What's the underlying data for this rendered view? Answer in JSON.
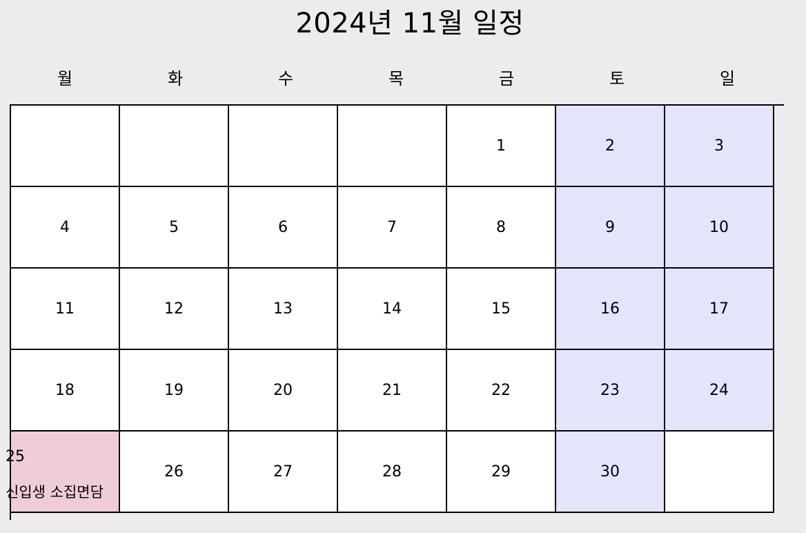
{
  "calendar": {
    "title": "2024년 11월 일정",
    "weekdays": [
      "월",
      "화",
      "수",
      "목",
      "금",
      "토",
      "일"
    ],
    "weeks": [
      [
        "",
        "",
        "",
        "",
        "1",
        "2",
        "3"
      ],
      [
        "4",
        "5",
        "6",
        "7",
        "8",
        "9",
        "10"
      ],
      [
        "11",
        "12",
        "13",
        "14",
        "15",
        "16",
        "17"
      ],
      [
        "18",
        "19",
        "20",
        "21",
        "22",
        "23",
        "24"
      ],
      [
        "25",
        "26",
        "27",
        "28",
        "29",
        "30",
        ""
      ]
    ],
    "events": {
      "25": "신입생 소집면담"
    },
    "colors": {
      "background": "#ececec",
      "cell": "#ffffff",
      "weekend": "#e3e6fa",
      "event": "#efccd9",
      "border": "#000000"
    }
  }
}
